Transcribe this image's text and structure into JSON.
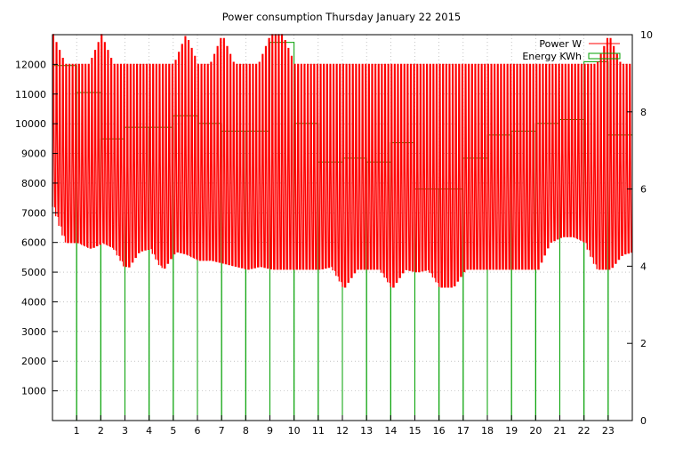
{
  "chart_data": {
    "type": "line",
    "title": "Power consumption Thursday January 22 2015",
    "xlabel": "",
    "ylabel": "",
    "y2label": "",
    "xlim": [
      0,
      24
    ],
    "ylim": [
      0,
      13000
    ],
    "y2lim": [
      0,
      10
    ],
    "x_ticks": [
      1,
      2,
      3,
      4,
      5,
      6,
      7,
      8,
      9,
      10,
      11,
      12,
      13,
      14,
      15,
      16,
      17,
      18,
      19,
      20,
      21,
      22,
      23
    ],
    "y_ticks": [
      1000,
      2000,
      3000,
      4000,
      5000,
      6000,
      7000,
      8000,
      9000,
      10000,
      11000,
      12000
    ],
    "y2_ticks": [
      0,
      2,
      4,
      6,
      8,
      10
    ],
    "grid": true,
    "legend_position": "top-right",
    "series": [
      {
        "name": "Power W",
        "axis": "y",
        "style": "line",
        "color": "#ff0000",
        "x": [
          0.0,
          0.5,
          1.0,
          1.5,
          2.0,
          2.5,
          3.0,
          3.5,
          4.0,
          4.5,
          5.0,
          5.5,
          6.0,
          6.5,
          7.0,
          7.5,
          8.0,
          8.5,
          9.0,
          9.5,
          10.0,
          10.5,
          11.0,
          11.5,
          12.0,
          12.5,
          13.0,
          13.5,
          14.0,
          14.5,
          15.0,
          15.5,
          16.0,
          16.5,
          17.0,
          17.5,
          18.0,
          18.5,
          19.0,
          19.5,
          20.0,
          20.5,
          21.0,
          21.5,
          22.0,
          22.5,
          23.0,
          23.5,
          24.0
        ],
        "high": [
          13000,
          12000,
          12000,
          12000,
          13000,
          12000,
          12000,
          12000,
          12000,
          12000,
          12000,
          13000,
          12000,
          12000,
          13000,
          12000,
          12000,
          12000,
          13000,
          13000,
          12000,
          12000,
          12000,
          12000,
          12000,
          12000,
          12000,
          12000,
          12000,
          12000,
          12000,
          12000,
          12000,
          12000,
          12000,
          12000,
          12000,
          12000,
          12000,
          12000,
          12000,
          12000,
          12000,
          12000,
          12000,
          12000,
          13000,
          12000,
          12000
        ],
        "low": [
          7200,
          6000,
          6000,
          5800,
          6000,
          5800,
          5100,
          5700,
          5800,
          5100,
          5700,
          5600,
          5400,
          5400,
          5300,
          5200,
          5100,
          5200,
          5100,
          5100,
          5100,
          5100,
          5100,
          5200,
          4500,
          5100,
          5100,
          5100,
          4500,
          5100,
          5000,
          5100,
          4500,
          4500,
          5100,
          5100,
          5100,
          5100,
          5100,
          5100,
          5100,
          6000,
          6200,
          6200,
          6000,
          5100,
          5100,
          5600,
          5700
        ]
      },
      {
        "name": "Energy KWh",
        "axis": "y2",
        "style": "steps",
        "color": "#00a000",
        "hours": [
          0,
          1,
          2,
          3,
          4,
          5,
          6,
          7,
          8,
          9,
          10,
          11,
          12,
          13,
          14,
          15,
          16,
          17,
          18,
          19,
          20,
          21,
          22,
          23
        ],
        "values": [
          9.2,
          8.5,
          7.3,
          7.6,
          7.6,
          7.9,
          7.7,
          7.5,
          7.5,
          9.8,
          7.7,
          6.7,
          6.8,
          6.7,
          7.2,
          6.0,
          6.0,
          6.8,
          7.4,
          7.5,
          7.7,
          7.8,
          9.3,
          7.4
        ]
      }
    ]
  }
}
